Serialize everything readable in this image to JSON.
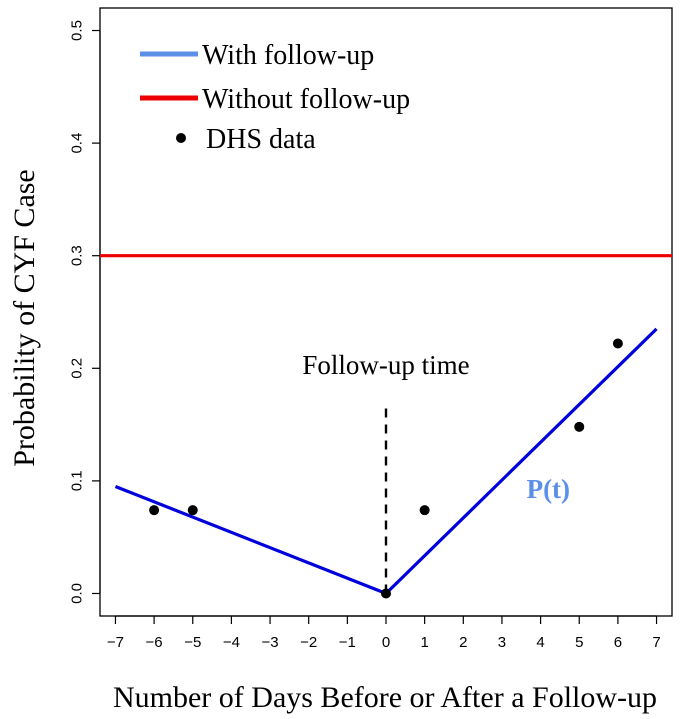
{
  "chart_data": {
    "type": "line",
    "title": "",
    "xlabel": "Number of Days Before or After a Follow-up",
    "ylabel": "Probability of CYF Case",
    "xlim": [
      -7.4,
      7.4
    ],
    "ylim": [
      -0.02,
      0.52
    ],
    "x_ticks": [
      -7,
      -6,
      -5,
      -4,
      -3,
      -2,
      -1,
      0,
      1,
      2,
      3,
      4,
      5,
      6,
      7
    ],
    "x_tick_labels": [
      "−7",
      "−6",
      "−5",
      "−4",
      "−3",
      "−2",
      "−1",
      "0",
      "1",
      "2",
      "3",
      "4",
      "5",
      "6",
      "7"
    ],
    "y_ticks": [
      0.0,
      0.1,
      0.2,
      0.3,
      0.4,
      0.5
    ],
    "y_tick_labels": [
      "0.0",
      "0.1",
      "0.2",
      "0.3",
      "0.4",
      "0.5"
    ],
    "grid": false,
    "legend_position": "top-left",
    "series": [
      {
        "name": "With follow-up",
        "kind": "line",
        "color": "#0000dd",
        "legend_color": "#5b8fe8",
        "x": [
          -7,
          0,
          7
        ],
        "y": [
          0.095,
          0.0,
          0.235
        ]
      },
      {
        "name": "Without follow-up",
        "kind": "hline",
        "color": "#ee0000",
        "y": 0.3
      },
      {
        "name": "DHS data",
        "kind": "scatter",
        "color": "#000000",
        "x": [
          -6,
          -5,
          0,
          1,
          5,
          6
        ],
        "y": [
          0.074,
          0.074,
          0.0,
          0.074,
          0.148,
          0.222
        ]
      }
    ],
    "annotations": [
      {
        "text": "Follow-up time",
        "x": 0,
        "y": 0.195,
        "kind": "vline-label"
      },
      {
        "text": "P(t)",
        "x": 4.2,
        "y": 0.085,
        "color": "#5b8fe8",
        "kind": "curve-label"
      }
    ],
    "vline": {
      "x": 0,
      "y_from": 0.0,
      "y_to": 0.17,
      "style": "dashed"
    }
  }
}
